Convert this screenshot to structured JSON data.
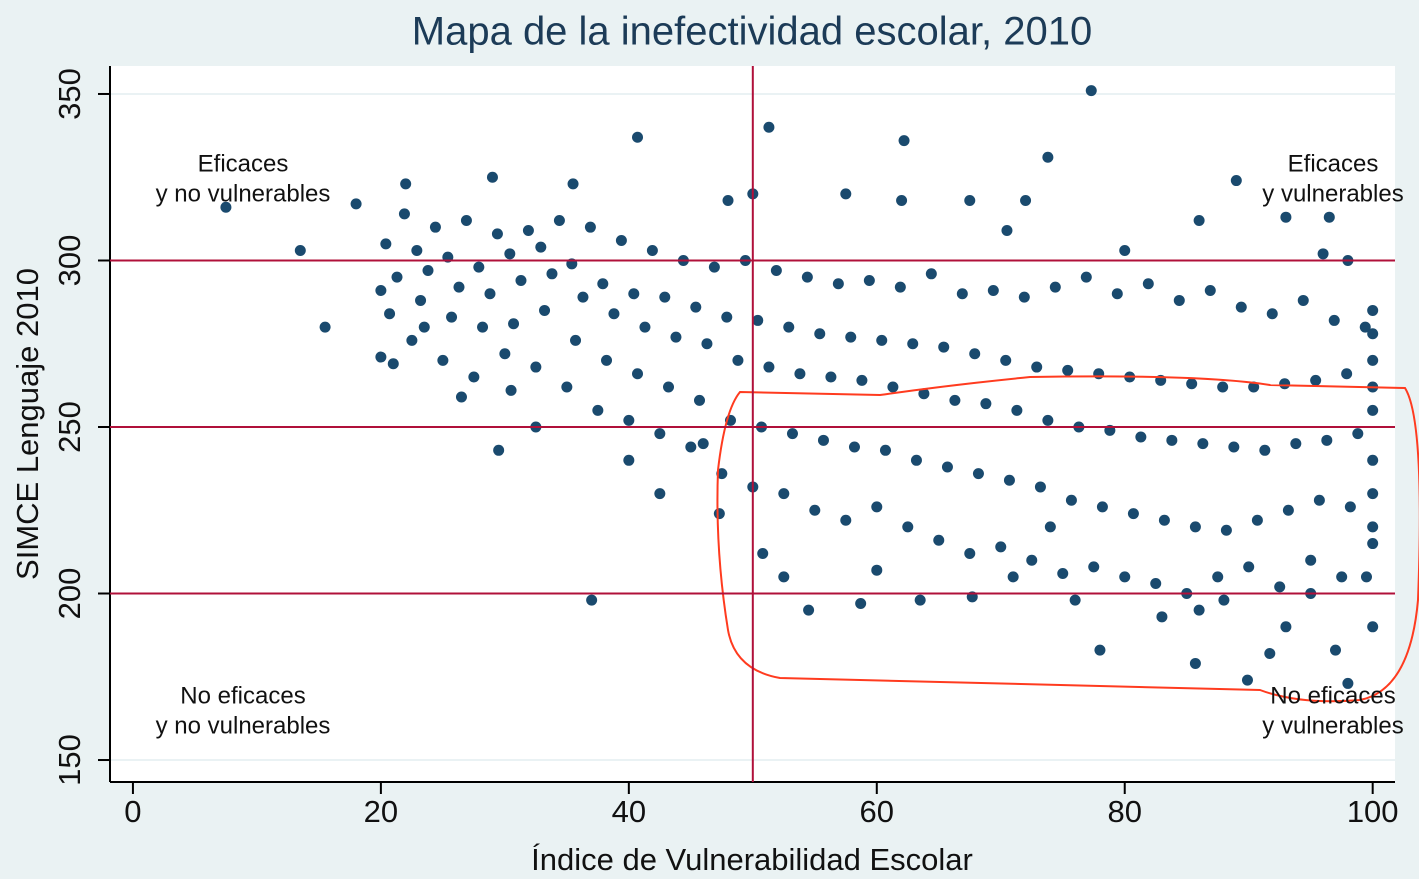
{
  "chart_data": {
    "type": "scatter",
    "title": "Mapa de la inefectividad escolar, 2010",
    "x_label": "Índice de Vulnerabilidad Escolar",
    "y_label": "SIMCE Lenguaje 2010",
    "xlim": [
      -1.85,
      101.8
    ],
    "ylim": [
      143.4,
      358.4
    ],
    "xticks": [
      0,
      20,
      40,
      60,
      80,
      100
    ],
    "yticks": [
      150,
      200,
      250,
      300,
      350
    ],
    "color": "#1a4a6e",
    "ref_line_color": "#b0103a",
    "xline": [
      50
    ],
    "yline": [
      300,
      250,
      200
    ],
    "annotations": [
      {
        "lines": [
          "Eficaces",
          "y no vulnerables"
        ]
      },
      {
        "lines": [
          "Eficaces",
          "y vulnerables"
        ]
      },
      {
        "lines": [
          "No eficaces",
          "y no vulnerables"
        ]
      },
      {
        "lines": [
          "No eficaces",
          "y vulnerables"
        ]
      }
    ],
    "x": [
      7.5,
      13.5,
      15.5,
      18,
      21,
      29.5,
      37,
      40.7,
      51.3,
      62.2,
      73.8,
      77.3,
      54.5,
      58.7,
      63.5,
      67.7,
      76,
      78,
      85.7,
      89.9,
      91.7,
      97,
      98,
      52.5,
      50.8,
      47.3,
      42.5,
      60,
      71,
      74,
      83,
      86,
      88,
      93,
      95,
      99.5,
      100,
      100,
      100,
      100,
      100,
      46,
      40,
      32.5,
      30.5,
      26.5,
      23.5,
      20,
      22,
      29,
      35.5,
      48,
      50,
      57.5,
      67.5,
      70.5,
      72,
      86,
      89,
      93,
      96.5,
      96,
      98,
      80,
      62,
      20,
      20.7,
      21.3,
      20.4,
      21.9,
      22.5,
      23.2,
      23.8,
      22.9,
      24.4,
      25,
      25.7,
      26.3,
      25.4,
      26.9,
      27.5,
      28.2,
      28.8,
      27.9,
      29.4,
      30,
      30.7,
      31.3,
      30.4,
      31.9,
      32.5,
      33.2,
      33.8,
      32.9,
      34.4,
      35,
      35.7,
      36.3,
      35.4,
      36.9,
      37.5,
      38.2,
      38.8,
      37.9,
      39.4,
      40,
      40.7,
      41.3,
      40.4,
      41.9,
      42.5,
      43.2,
      43.8,
      42.9,
      44.4,
      45,
      45.7,
      46.3,
      45.4,
      46.9,
      47.5,
      48.2,
      48.8,
      47.9,
      49.4,
      50,
      50.7,
      51.3,
      50.4,
      51.9,
      52.5,
      53.2,
      53.8,
      52.9,
      54.4,
      55,
      55.7,
      56.3,
      55.4,
      56.9,
      57.5,
      58.2,
      58.8,
      57.9,
      59.4,
      60,
      60.7,
      61.3,
      60.4,
      61.9,
      62.5,
      63.2,
      63.8,
      62.9,
      64.4,
      65,
      65.7,
      66.3,
      65.4,
      66.9,
      67.5,
      68.2,
      68.8,
      67.9,
      69.4,
      70,
      70.7,
      71.3,
      70.4,
      71.9,
      72.5,
      73.2,
      73.8,
      72.9,
      74.4,
      75,
      75.7,
      76.3,
      75.4,
      76.9,
      77.5,
      78.2,
      78.8,
      77.9,
      79.4,
      80,
      80.7,
      81.3,
      80.4,
      81.9,
      82.5,
      83.2,
      83.8,
      82.9,
      84.4,
      85,
      85.7,
      86.3,
      85.4,
      86.9,
      87.5,
      88.2,
      88.8,
      87.9,
      89.4,
      90,
      90.7,
      91.3,
      90.4,
      91.9,
      92.5,
      93.2,
      93.8,
      92.9,
      94.4,
      95,
      95.7,
      96.3,
      95.4,
      96.9,
      97.5,
      98.2,
      98.8,
      97.9,
      99.4,
      100,
      100,
      100,
      100,
      100
    ],
    "values": [
      316,
      303,
      280,
      317,
      269,
      243,
      198,
      337,
      340,
      336,
      331,
      351,
      195,
      197,
      198,
      199,
      198,
      183,
      179,
      174,
      182,
      183,
      173,
      205,
      212,
      224,
      230,
      207,
      205,
      220,
      193,
      195,
      198,
      190,
      200,
      205,
      190,
      215,
      230,
      270,
      285,
      245,
      240,
      250,
      261,
      259,
      280,
      291,
      323,
      325,
      323,
      318,
      320,
      320,
      318,
      309,
      318,
      312,
      324,
      313,
      313,
      302,
      300,
      303,
      318,
      271,
      284,
      295,
      305,
      314,
      276,
      288,
      297,
      303,
      310,
      270,
      283,
      292,
      301,
      312,
      265,
      280,
      290,
      298,
      308,
      272,
      281,
      294,
      302,
      309,
      268,
      285,
      296,
      304,
      312,
      262,
      276,
      289,
      299,
      310,
      255,
      270,
      284,
      293,
      306,
      252,
      266,
      280,
      290,
      303,
      248,
      262,
      277,
      289,
      300,
      244,
      258,
      275,
      286,
      298,
      236,
      252,
      270,
      283,
      300,
      232,
      250,
      268,
      282,
      297,
      230,
      248,
      266,
      280,
      295,
      225,
      246,
      265,
      278,
      293,
      222,
      244,
      264,
      277,
      294,
      226,
      243,
      262,
      276,
      292,
      220,
      240,
      260,
      275,
      296,
      216,
      238,
      258,
      274,
      290,
      212,
      236,
      257,
      272,
      291,
      214,
      234,
      255,
      270,
      289,
      210,
      232,
      252,
      268,
      292,
      206,
      228,
      250,
      267,
      295,
      208,
      226,
      249,
      266,
      290,
      205,
      224,
      247,
      265,
      293,
      203,
      222,
      246,
      264,
      288,
      200,
      220,
      245,
      263,
      291,
      205,
      219,
      244,
      262,
      286,
      208,
      222,
      243,
      262,
      284,
      202,
      225,
      245,
      263,
      288,
      210,
      228,
      246,
      264,
      282,
      205,
      226,
      248,
      266,
      280,
      220,
      240,
      255,
      262,
      278
    ]
  }
}
